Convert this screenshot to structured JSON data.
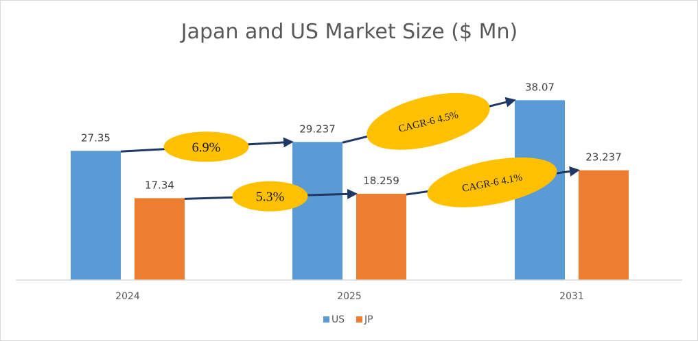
{
  "chart_data": {
    "type": "bar",
    "title": "Japan and US Market Size ($ Mn)",
    "xlabel": "",
    "ylabel": "",
    "categories": [
      "2024",
      "2025",
      "2031"
    ],
    "series": [
      {
        "name": "US",
        "values": [
          27.35,
          29.237,
          38.07
        ],
        "color": "#5b9bd5"
      },
      {
        "name": "JP",
        "values": [
          17.34,
          18.259,
          23.237
        ],
        "color": "#ed7d31"
      }
    ],
    "value_labels": {
      "US": [
        "27.35",
        "29.237",
        "38.07"
      ],
      "JP": [
        "17.34",
        "18.259",
        "23.237"
      ]
    },
    "ylim": [
      0,
      40
    ],
    "grid": false,
    "legend": {
      "position": "bottom",
      "items": [
        "US",
        "JP"
      ]
    },
    "annotations": [
      {
        "text": "6.9%",
        "series": "US",
        "from": "2024",
        "to": "2025"
      },
      {
        "text": "CAGR-6 4.5%",
        "series": "US",
        "from": "2025",
        "to": "2031"
      },
      {
        "text": "5.3%",
        "series": "JP",
        "from": "2024",
        "to": "2025"
      },
      {
        "text": "CAGR-6 4.1%",
        "series": "JP",
        "from": "2025",
        "to": "2031"
      }
    ],
    "colors": {
      "callout_fill": "#ffc000",
      "arrow": "#1f3864",
      "axis_line": "#d9d9d9",
      "text": "#595959"
    }
  }
}
